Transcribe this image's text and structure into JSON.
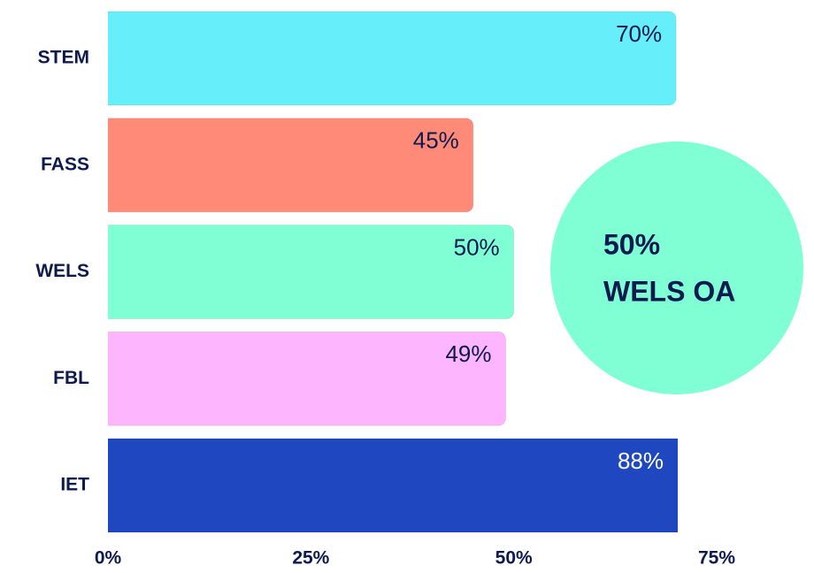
{
  "chart_data": {
    "type": "bar",
    "orientation": "horizontal",
    "categories": [
      "STEM",
      "FASS",
      "WELS",
      "FBL",
      "IET"
    ],
    "values": [
      70,
      45,
      50,
      49,
      88
    ],
    "value_labels": [
      "70%",
      "45%",
      "50%",
      "49%",
      "88%"
    ],
    "colors": [
      "#66eefa",
      "#ff8a78",
      "#80ffd4",
      "#fdb5fd",
      "#1f47c0"
    ],
    "xlim": [
      0,
      75
    ],
    "xticks": [
      {
        "value": 0,
        "label": "0%"
      },
      {
        "value": 25,
        "label": "25%"
      },
      {
        "value": 50,
        "label": "50%"
      },
      {
        "value": 75,
        "label": "75%"
      }
    ],
    "annotation": [
      "50%",
      "WELS OA"
    ],
    "annotation_color": "#80ffd4"
  }
}
